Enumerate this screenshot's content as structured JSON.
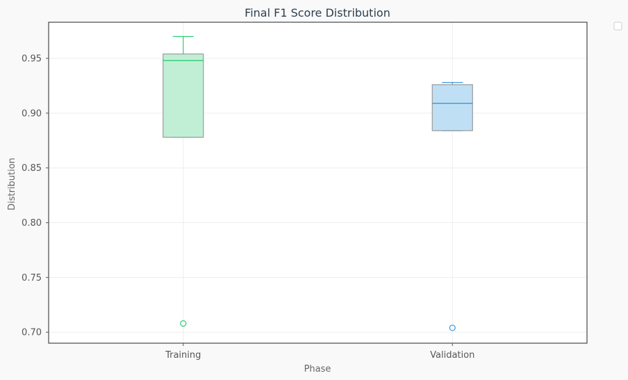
{
  "chart_data": {
    "type": "box",
    "title": "Final F1 Score Distribution",
    "xlabel": "Phase",
    "ylabel": "Distribution",
    "categories": [
      "Training",
      "Validation"
    ],
    "ylim": [
      0.69,
      0.983
    ],
    "yticks": [
      0.7,
      0.75,
      0.8,
      0.85,
      0.9,
      0.95
    ],
    "ytick_labels": [
      "0.70",
      "0.75",
      "0.80",
      "0.85",
      "0.90",
      "0.95"
    ],
    "grid": true,
    "legend": "top-right (empty)",
    "series": [
      {
        "category": "Training",
        "whisker_low": 0.878,
        "q1": 0.878,
        "median": 0.948,
        "q3": 0.954,
        "whisker_high": 0.97,
        "outliers": [
          0.708
        ],
        "fill_color": "#c1efd5",
        "line_color": "#2ecc71"
      },
      {
        "category": "Validation",
        "whisker_low": 0.884,
        "q1": 0.884,
        "median": 0.909,
        "q3": 0.926,
        "whisker_high": 0.928,
        "outliers": [
          0.704
        ],
        "fill_color": "#bfdff4",
        "line_color": "#3498db"
      }
    ]
  }
}
